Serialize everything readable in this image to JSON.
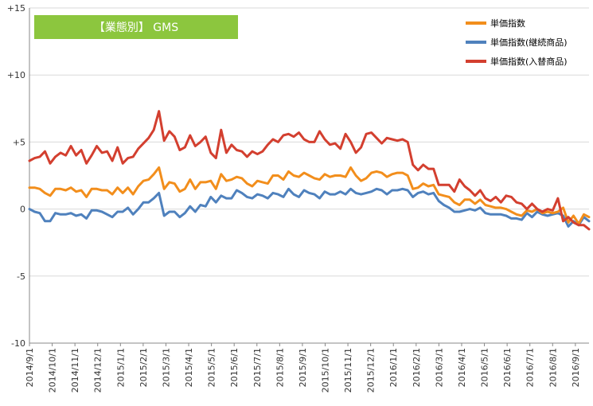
{
  "chart_data": {
    "type": "line",
    "title": "【業態別】 GMS",
    "title_bg": "#8cc63e",
    "ylim": [
      -10,
      15
    ],
    "yticks": [
      {
        "v": 15,
        "label": "+15"
      },
      {
        "v": 10,
        "label": "+10"
      },
      {
        "v": 5,
        "label": "+5"
      },
      {
        "v": 0,
        "label": "0"
      },
      {
        "v": -5,
        "label": "-5"
      },
      {
        "v": -10,
        "label": "-10"
      }
    ],
    "grid": true,
    "legend_position": "top-right",
    "xlim": [
      0,
      24.6
    ],
    "xticks": [
      "2014/9/1",
      "2014/10/1",
      "2014/11/1",
      "2014/12/1",
      "2015/1/1",
      "2015/2/1",
      "2015/3/1",
      "2015/4/1",
      "2015/5/1",
      "2015/6/1",
      "2015/7/1",
      "2015/8/1",
      "2015/9/1",
      "2015/10/1",
      "2015/11/1",
      "2015/12/1",
      "2016/1/1",
      "2016/2/1",
      "2016/3/1",
      "2016/4/1",
      "2016/5/1",
      "2016/6/1",
      "2016/7/1",
      "2016/8/1",
      "2016/9/1"
    ],
    "series": [
      {
        "name": "単価指数",
        "color": "#f28e1c",
        "values": [
          1.6,
          1.6,
          1.5,
          1.2,
          1.0,
          1.5,
          1.5,
          1.4,
          1.6,
          1.3,
          1.4,
          0.9,
          1.5,
          1.5,
          1.4,
          1.4,
          1.1,
          1.6,
          1.2,
          1.6,
          1.1,
          1.7,
          2.1,
          2.2,
          2.6,
          3.1,
          1.5,
          2.0,
          1.9,
          1.3,
          1.5,
          2.2,
          1.5,
          2.0,
          2.0,
          2.1,
          1.5,
          2.6,
          2.1,
          2.2,
          2.4,
          2.3,
          1.9,
          1.7,
          2.1,
          2.0,
          1.9,
          2.5,
          2.5,
          2.2,
          2.8,
          2.5,
          2.4,
          2.7,
          2.5,
          2.3,
          2.2,
          2.6,
          2.4,
          2.5,
          2.5,
          2.4,
          3.1,
          2.5,
          2.1,
          2.3,
          2.7,
          2.8,
          2.7,
          2.4,
          2.6,
          2.7,
          2.7,
          2.5,
          1.5,
          1.6,
          1.9,
          1.7,
          1.8,
          1.1,
          1.0,
          0.9,
          0.5,
          0.3,
          0.7,
          0.7,
          0.4,
          0.7,
          0.3,
          0.2,
          0.1,
          0.1,
          0.0,
          -0.2,
          -0.4,
          -0.5,
          -0.1,
          -0.2,
          0.0,
          -0.3,
          -0.2,
          -0.3,
          -0.2,
          0.1,
          -1.0,
          -0.5,
          -1.1,
          -0.4,
          -0.6
        ],
        "x_end": 24.6
      },
      {
        "name": "単価指数(継続商品)",
        "color": "#4f81bd",
        "values": [
          0.0,
          -0.2,
          -0.3,
          -0.9,
          -0.9,
          -0.3,
          -0.4,
          -0.4,
          -0.3,
          -0.5,
          -0.4,
          -0.7,
          -0.1,
          -0.1,
          -0.2,
          -0.4,
          -0.6,
          -0.2,
          -0.2,
          0.1,
          -0.4,
          0.0,
          0.5,
          0.5,
          0.8,
          1.2,
          -0.5,
          -0.2,
          -0.2,
          -0.6,
          -0.3,
          0.2,
          -0.2,
          0.3,
          0.2,
          0.9,
          0.5,
          1.0,
          0.8,
          0.8,
          1.4,
          1.2,
          0.9,
          0.8,
          1.1,
          1.0,
          0.8,
          1.2,
          1.1,
          0.9,
          1.5,
          1.1,
          0.9,
          1.4,
          1.2,
          1.1,
          0.8,
          1.3,
          1.1,
          1.1,
          1.3,
          1.1,
          1.5,
          1.2,
          1.1,
          1.2,
          1.3,
          1.5,
          1.4,
          1.1,
          1.4,
          1.4,
          1.5,
          1.4,
          0.9,
          1.2,
          1.3,
          1.1,
          1.2,
          0.6,
          0.3,
          0.1,
          -0.2,
          -0.2,
          -0.1,
          0.0,
          -0.1,
          0.1,
          -0.3,
          -0.4,
          -0.4,
          -0.4,
          -0.5,
          -0.7,
          -0.7,
          -0.8,
          -0.3,
          -0.6,
          -0.2,
          -0.4,
          -0.5,
          -0.4,
          -0.3,
          -0.5,
          -1.3,
          -0.9,
          -1.2,
          -0.6,
          -0.9
        ],
        "x_end": 24.6
      },
      {
        "name": "単価指数(入替商品)",
        "color": "#d33f2f",
        "values": [
          3.6,
          3.8,
          3.9,
          4.3,
          3.4,
          3.9,
          4.2,
          4.0,
          4.7,
          4.0,
          4.4,
          3.4,
          4.0,
          4.7,
          4.2,
          4.3,
          3.6,
          4.6,
          3.4,
          3.8,
          3.9,
          4.5,
          4.9,
          5.3,
          5.9,
          7.3,
          5.1,
          5.8,
          5.4,
          4.4,
          4.6,
          5.5,
          4.7,
          5.0,
          5.4,
          4.2,
          3.8,
          5.9,
          4.2,
          4.8,
          4.4,
          4.3,
          3.9,
          4.3,
          4.1,
          4.3,
          4.8,
          5.2,
          5.0,
          5.5,
          5.6,
          5.4,
          5.7,
          5.2,
          5.0,
          5.0,
          5.8,
          5.2,
          4.8,
          4.9,
          4.5,
          5.6,
          5.0,
          4.2,
          4.6,
          5.6,
          5.7,
          5.3,
          4.9,
          5.3,
          5.2,
          5.1,
          5.2,
          5.0,
          3.3,
          2.9,
          3.3,
          3.0,
          3.0,
          1.8,
          1.8,
          1.8,
          1.3,
          2.2,
          1.7,
          1.4,
          1.0,
          1.4,
          0.8,
          0.6,
          0.9,
          0.5,
          1.0,
          0.9,
          0.5,
          0.4,
          0.0,
          0.4,
          0.0,
          -0.2,
          0.0,
          -0.1,
          0.8,
          -0.9,
          -0.6,
          -1.0,
          -1.2,
          -1.2,
          -1.5
        ],
        "x_end": 24.6
      }
    ]
  }
}
